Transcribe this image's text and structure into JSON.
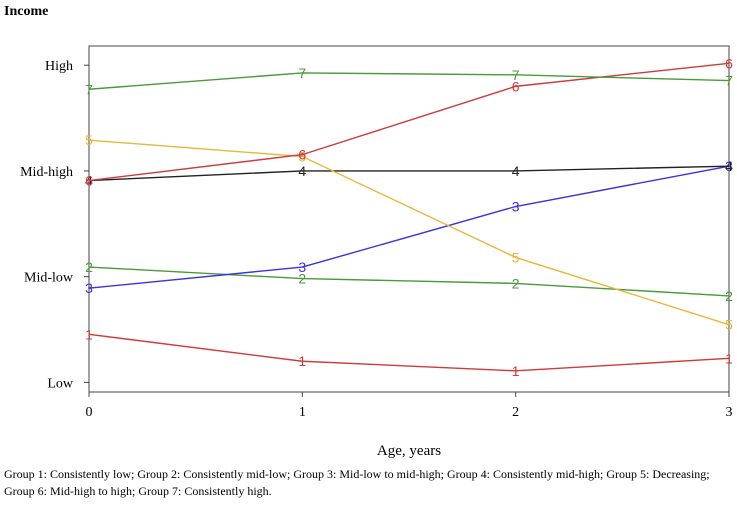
{
  "chart_data": {
    "type": "line",
    "title": "",
    "ylabel": "Income",
    "xlabel": "Age, years",
    "x": [
      0,
      1,
      2,
      3
    ],
    "xlim": [
      0,
      3
    ],
    "ylim": [
      0,
      3.6
    ],
    "y_ticks": [
      {
        "value": 0.1,
        "label": "Low"
      },
      {
        "value": 1.2,
        "label": "Mid-low"
      },
      {
        "value": 2.3,
        "label": "Mid-high"
      },
      {
        "value": 3.4,
        "label": "High"
      }
    ],
    "grid": false,
    "series": [
      {
        "name": "1",
        "color": "#d03a3a",
        "values": [
          0.6,
          0.32,
          0.22,
          0.35
        ]
      },
      {
        "name": "2",
        "color": "#4b9a3a",
        "values": [
          1.3,
          1.18,
          1.13,
          1.0
        ]
      },
      {
        "name": "3",
        "color": "#3a33e0",
        "values": [
          1.08,
          1.3,
          1.93,
          2.35
        ]
      },
      {
        "name": "4",
        "color": "#222222",
        "values": [
          2.2,
          2.3,
          2.3,
          2.35
        ]
      },
      {
        "name": "5",
        "color": "#e6b838",
        "values": [
          2.62,
          2.45,
          1.4,
          0.7
        ]
      },
      {
        "name": "6",
        "color": "#d03a3a",
        "values": [
          2.2,
          2.47,
          3.18,
          3.42
        ]
      },
      {
        "name": "7",
        "color": "#4b9a3a",
        "values": [
          3.15,
          3.32,
          3.3,
          3.24
        ]
      }
    ]
  },
  "caption": "Group 1: Consistently low; Group 2: Consistently mid-low; Group 3: Mid-low to mid-high; Group 4: Consistently mid-high; Group 5: Decreasing; Group 6: Mid-high to high; Group 7: Consistently high."
}
